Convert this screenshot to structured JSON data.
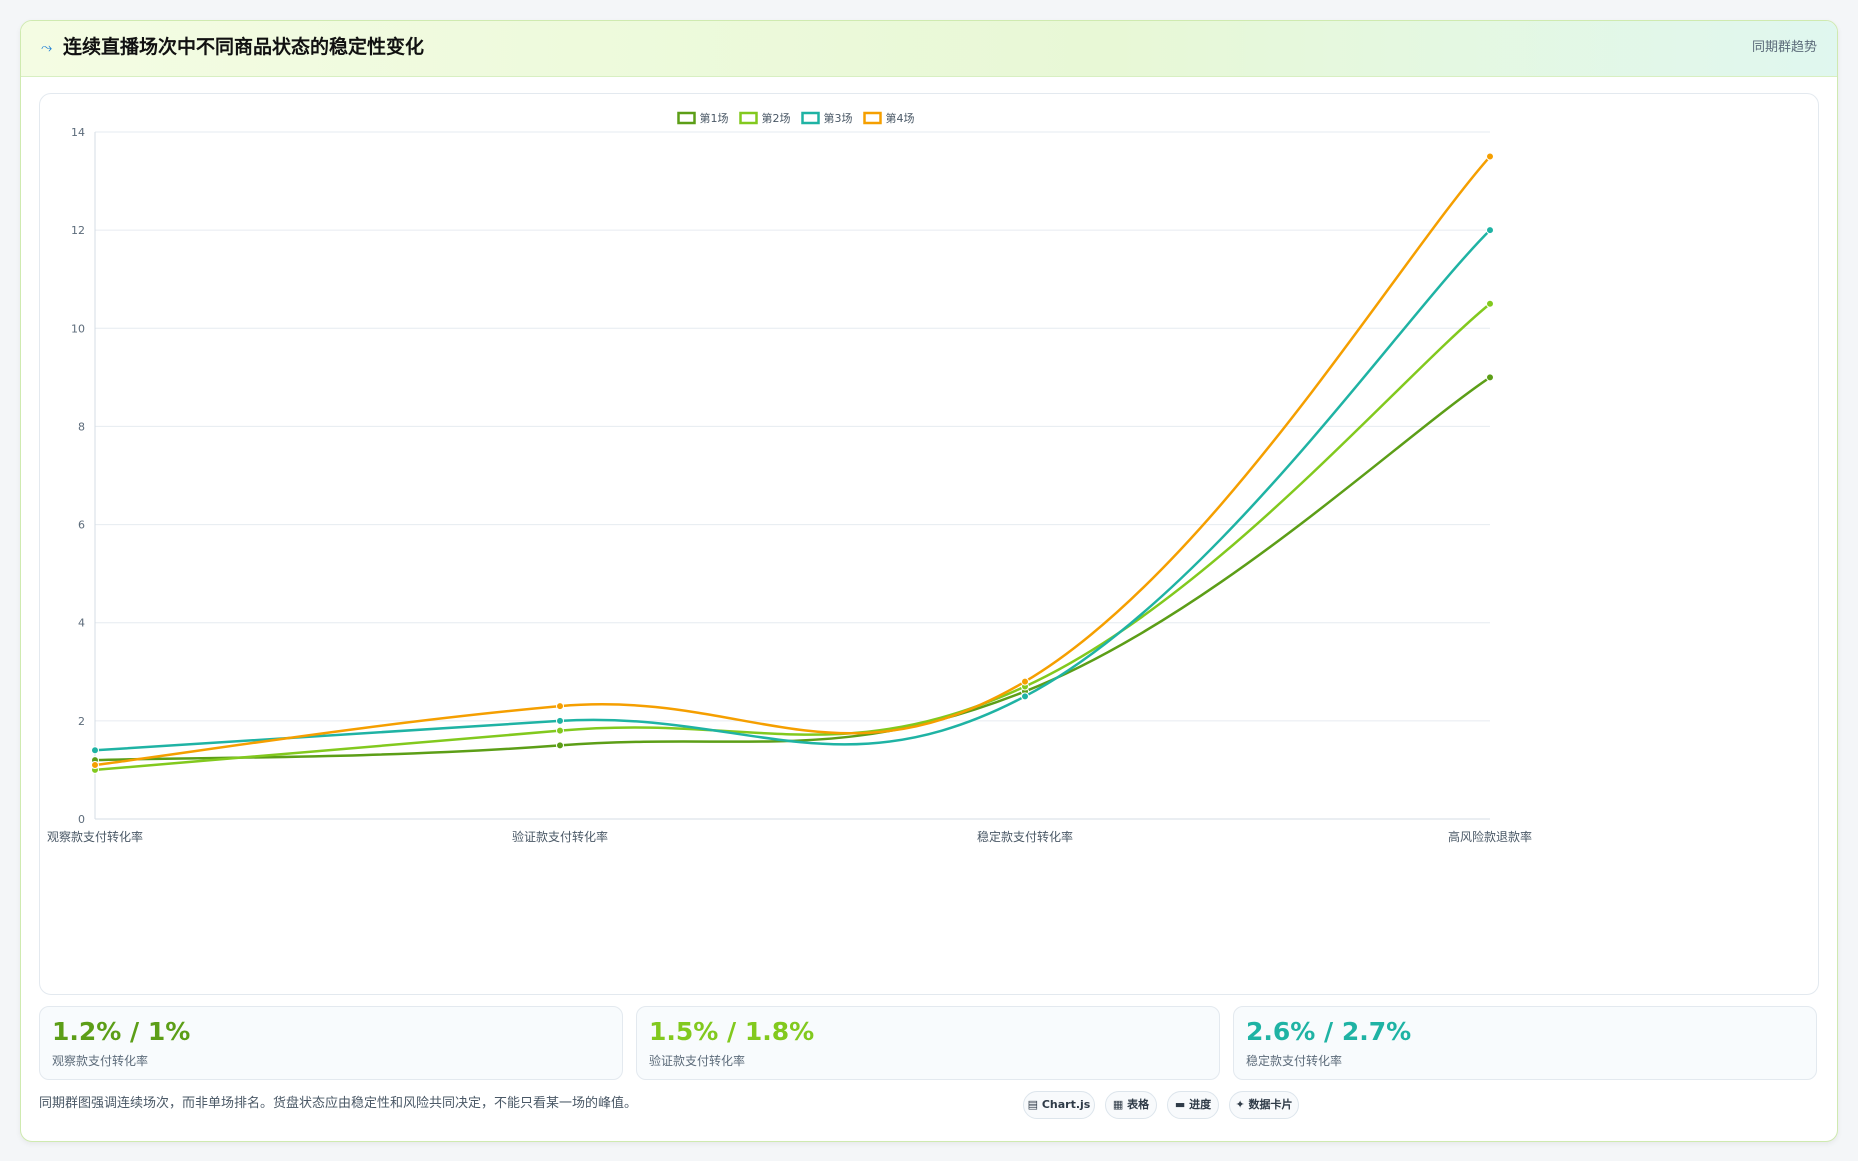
{
  "header": {
    "icon": "trend-icon",
    "title": "连续直播场次中不同商品状态的稳定性变化",
    "right_label": "同期群趋势"
  },
  "chart_data": {
    "type": "line",
    "categories": [
      "观察款支付转化率",
      "验证款支付转化率",
      "稳定款支付转化率",
      "高风险款退款率"
    ],
    "series": [
      {
        "name": "第1场",
        "color": "#5c9e17",
        "values": [
          1.2,
          1.5,
          2.6,
          9.0
        ]
      },
      {
        "name": "第2场",
        "color": "#82c91e",
        "values": [
          1.0,
          1.8,
          2.7,
          10.5
        ]
      },
      {
        "name": "第3场",
        "color": "#1fb3a4",
        "values": [
          1.4,
          2.0,
          2.5,
          12.0
        ]
      },
      {
        "name": "第4场",
        "color": "#f59f00",
        "values": [
          1.1,
          2.3,
          2.8,
          13.5
        ]
      }
    ],
    "ylim": [
      0,
      14
    ],
    "yticks": [
      0,
      2,
      4,
      6,
      8,
      10,
      12,
      14
    ],
    "grid": true,
    "legend": "top-center"
  },
  "stats": [
    {
      "value": "1.2% / 1%",
      "label": "观察款支付转化率",
      "color": "#5c9e17"
    },
    {
      "value": "1.5% / 1.8%",
      "label": "验证款支付转化率",
      "color": "#82c91e"
    },
    {
      "value": "2.6% / 2.7%",
      "label": "稳定款支付转化率",
      "color": "#1fb3a4"
    }
  ],
  "footnote": "同期群图强调连续场次，而非单场排名。货盘状态应由稳定性和风险共同决定，不能只看某一场的峰值。",
  "pills": [
    "▤ Chart.js",
    "▦ 表格",
    "▬ 进度",
    "✦ 数据卡片"
  ]
}
